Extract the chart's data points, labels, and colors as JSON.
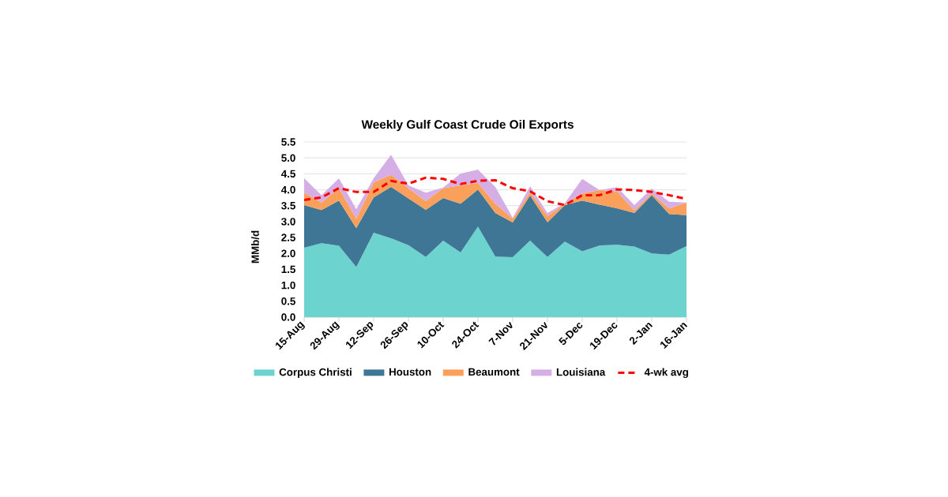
{
  "chart_data": {
    "type": "area",
    "title": "Weekly Gulf Coast Crude Oil Exports",
    "ylabel": "MMb/d",
    "stacked": true,
    "categories": [
      "15-Aug",
      null,
      "29-Aug",
      null,
      "12-Sep",
      null,
      "26-Sep",
      null,
      "10-Oct",
      null,
      "24-Oct",
      null,
      "7-Nov",
      null,
      "21-Nov",
      null,
      "5-Dec",
      null,
      "19-Dec",
      null,
      "2-Jan",
      null,
      "16-Jan"
    ],
    "series": [
      {
        "name": "Corpus Christi",
        "color": "#6dd3ce",
        "values": [
          2.18,
          2.32,
          2.24,
          1.57,
          2.65,
          2.48,
          2.26,
          1.89,
          2.4,
          2.03,
          2.84,
          1.9,
          1.88,
          2.4,
          1.89,
          2.37,
          2.07,
          2.25,
          2.27,
          2.22,
          2.0,
          1.96,
          2.23
        ]
      },
      {
        "name": "Houston",
        "color": "#3f7595",
        "values": [
          1.34,
          1.04,
          1.42,
          1.22,
          1.11,
          1.61,
          1.47,
          1.48,
          1.34,
          1.53,
          1.17,
          1.37,
          1.09,
          1.42,
          1.09,
          1.15,
          1.59,
          1.28,
          1.15,
          1.05,
          1.83,
          1.28,
          0.97
        ]
      },
      {
        "name": "Beaumont",
        "color": "#fba05a",
        "values": [
          0.39,
          0.24,
          0.39,
          0.3,
          0.47,
          0.38,
          0.32,
          0.27,
          0.31,
          0.58,
          0.21,
          0.29,
          0.12,
          0.11,
          0.2,
          0.04,
          0.23,
          0.46,
          0.53,
          0.08,
          0.06,
          0.17,
          0.4
        ]
      },
      {
        "name": "Louisiana",
        "color": "#d6aee6",
        "values": [
          0.45,
          0.23,
          0.31,
          0.3,
          0.13,
          0.63,
          0.09,
          0.27,
          0.02,
          0.37,
          0.41,
          0.53,
          0.03,
          0.18,
          0.09,
          0.02,
          0.45,
          0,
          0.13,
          0.17,
          0.15,
          0.21,
          0
        ]
      },
      {
        "name": "4-wk avg",
        "type": "line",
        "color": "#ff0000",
        "line_style": "dashed",
        "values": [
          3.68,
          3.76,
          4.05,
          3.93,
          3.93,
          4.28,
          4.19,
          4.38,
          4.34,
          4.18,
          4.28,
          4.3,
          4.05,
          3.95,
          3.64,
          3.52,
          3.83,
          3.83,
          4.01,
          3.99,
          3.93,
          3.83,
          3.71
        ]
      }
    ],
    "ylim": [
      0,
      5.5
    ],
    "yticks": [
      {
        "value": 0,
        "label": "0.0"
      },
      0.5,
      {
        "value": 1,
        "label": "1.0"
      },
      1.5,
      {
        "value": 2,
        "label": "2.0"
      },
      2.5,
      {
        "value": 3,
        "label": "3.0"
      },
      3.5,
      {
        "value": 4,
        "label": "4.0"
      },
      4.5,
      {
        "value": 5,
        "label": "5.0"
      },
      5.5
    ],
    "grid": "y",
    "legend": "bottom"
  }
}
